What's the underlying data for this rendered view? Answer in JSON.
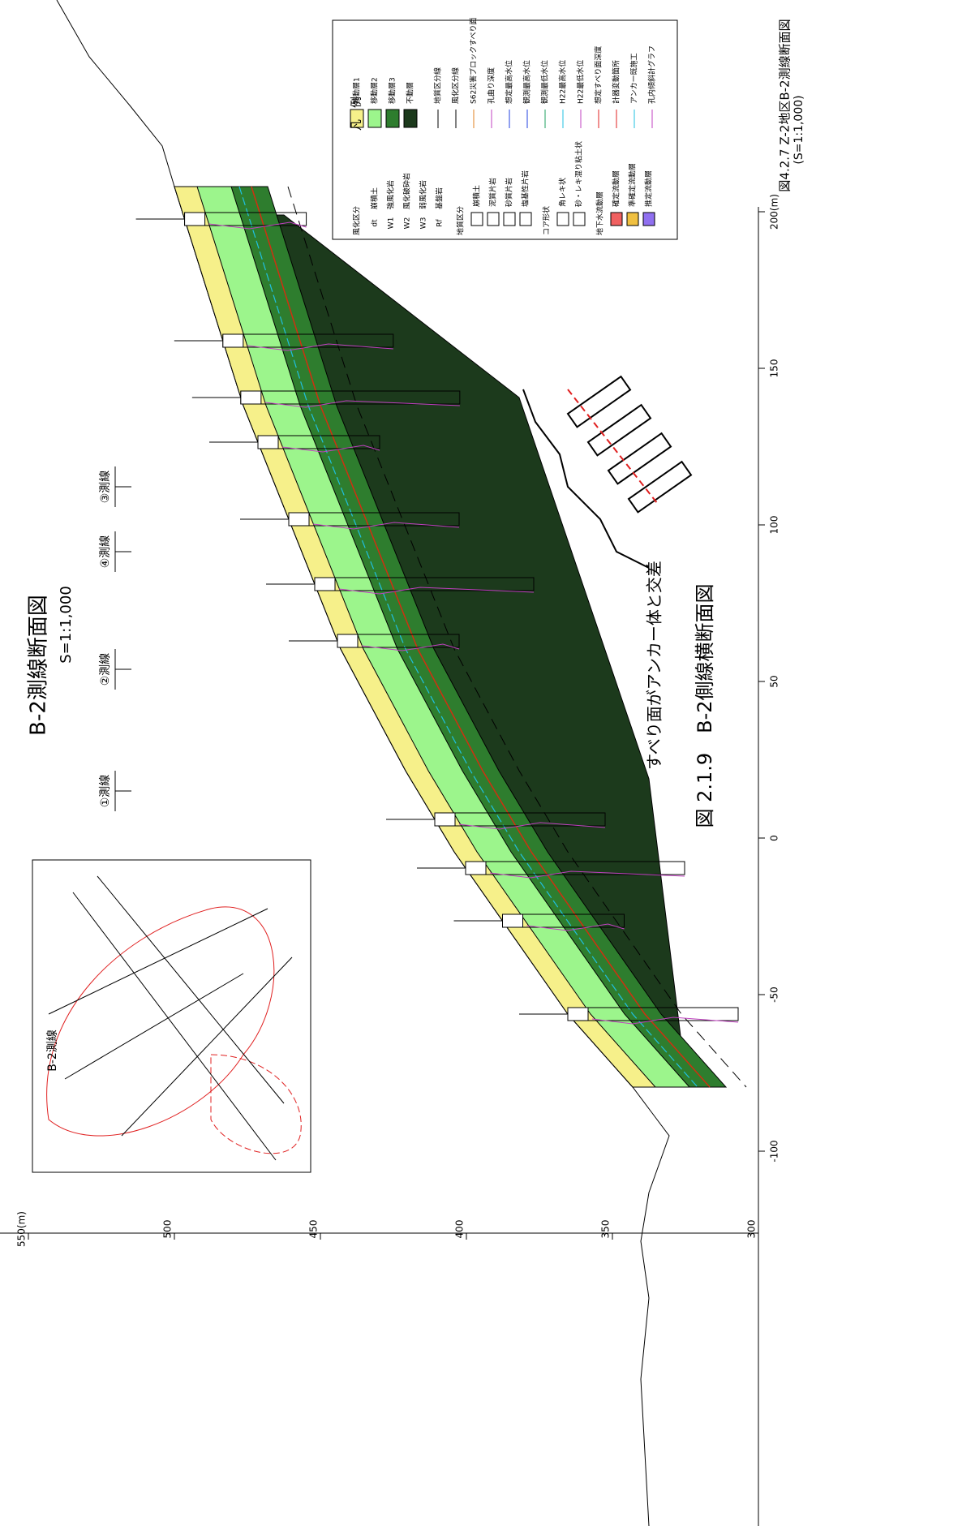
{
  "title": "B-2測線断面図",
  "scale": "S=1:1,000",
  "figure_caption": "図 2.1.9　B-2側線横断面図",
  "document_caption": {
    "title": "図4.2.7 Z-2地区B-2測線断面図",
    "scale": "(S=1:1,000)"
  },
  "annotation": "すべり面がアンカー体と交差",
  "section_lines": [
    "①測線",
    "②測線",
    "④測線",
    "③測線"
  ],
  "elevation_ticks": [
    300,
    350,
    400,
    450,
    500,
    {
      "value": 550,
      "label": "550(m)"
    }
  ],
  "distance_ticks": [
    -100,
    -50,
    0,
    50,
    100,
    150,
    {
      "value": 200,
      "label": "200(m)"
    }
  ],
  "legend": {
    "title": "凡　例",
    "weathering": {
      "header": "風化区分",
      "items": [
        {
          "code": "dt",
          "label": "崩積土"
        },
        {
          "code": "W1",
          "label": "強風化岩"
        },
        {
          "code": "W2",
          "label": "風化破砕岩"
        },
        {
          "code": "W3",
          "label": "弱風化岩"
        },
        {
          "code": "Rf",
          "label": "基盤岩"
        }
      ]
    },
    "geology": {
      "header": "地質区分",
      "items": [
        "崩積土",
        "泥質片岩",
        "砂質片岩",
        "塩基性片岩"
      ]
    },
    "core": {
      "header": "コア形状",
      "items": [
        "角レキ状",
        "砂・レキ混り粘土状"
      ]
    },
    "groundwater": {
      "header": "地下水流動層",
      "items": [
        "確定流動層",
        "準確定流動層",
        "推定流動層"
      ]
    },
    "layers": [
      "移動層1",
      "移動層2",
      "移動層3",
      "不動層"
    ],
    "lines": [
      "地質区分線",
      "風化区分線",
      "S62災害ブロックすべり面",
      "孔曲り深度",
      "想定最高水位",
      "観測最高水位",
      "観測最低水位",
      "H22最高水位",
      "H22最低水位",
      "想定すべり面深度",
      "計器変動箇所",
      "アンカー既施工",
      "孔内傾斜計グラフ"
    ]
  },
  "inset": {
    "label": "B-2測線"
  }
}
